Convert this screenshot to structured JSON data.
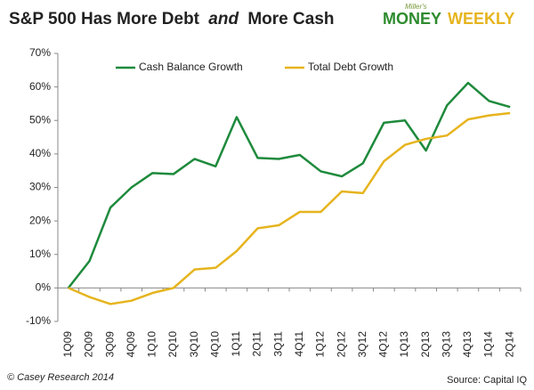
{
  "chart_data": {
    "type": "line",
    "title": [
      "S&P 500 Has More Debt",
      "and",
      "More Cash"
    ],
    "logo": {
      "top": "Miller's",
      "left": "MONEY",
      "right": "WEEKLY"
    },
    "credit": "© Casey Research 2014",
    "source": "Source: Capital IQ",
    "categories": [
      "1Q09",
      "2Q09",
      "3Q09",
      "4Q09",
      "1Q10",
      "2Q10",
      "3Q10",
      "4Q10",
      "1Q11",
      "2Q11",
      "3Q11",
      "4Q11",
      "1Q12",
      "2Q12",
      "3Q12",
      "4Q12",
      "1Q13",
      "2Q13",
      "3Q13",
      "4Q13",
      "1Q14",
      "2Q14"
    ],
    "series": [
      {
        "name": "Cash Balance Growth",
        "color": "#1e8a3c",
        "values": [
          0,
          8,
          24,
          30,
          34.3,
          34,
          38.5,
          36.3,
          51,
          38.8,
          38.5,
          39.7,
          34.8,
          33.3,
          37.2,
          49.3,
          50,
          41,
          54.5,
          61.2,
          55.8,
          54
        ]
      },
      {
        "name": "Total Debt Growth",
        "color": "#e6b41e",
        "values": [
          0,
          -2.7,
          -4.8,
          -3.8,
          -1.5,
          0,
          5.5,
          6,
          11,
          17.8,
          18.7,
          22.7,
          22.7,
          28.8,
          28.3,
          37.8,
          42.7,
          44.5,
          45.5,
          50.3,
          51.5,
          52.2
        ]
      }
    ],
    "ylim": [
      -10,
      70
    ],
    "yticks": [
      {
        "value": -10,
        "label": "-10%"
      },
      {
        "value": 0,
        "label": "0%"
      },
      {
        "value": 10,
        "label": "10%"
      },
      {
        "value": 20,
        "label": "20%"
      },
      {
        "value": 30,
        "label": "30%"
      },
      {
        "value": 40,
        "label": "40%"
      },
      {
        "value": 50,
        "label": "50%"
      },
      {
        "value": 60,
        "label": "60%"
      },
      {
        "value": 70,
        "label": "70%"
      }
    ],
    "grid": false
  }
}
